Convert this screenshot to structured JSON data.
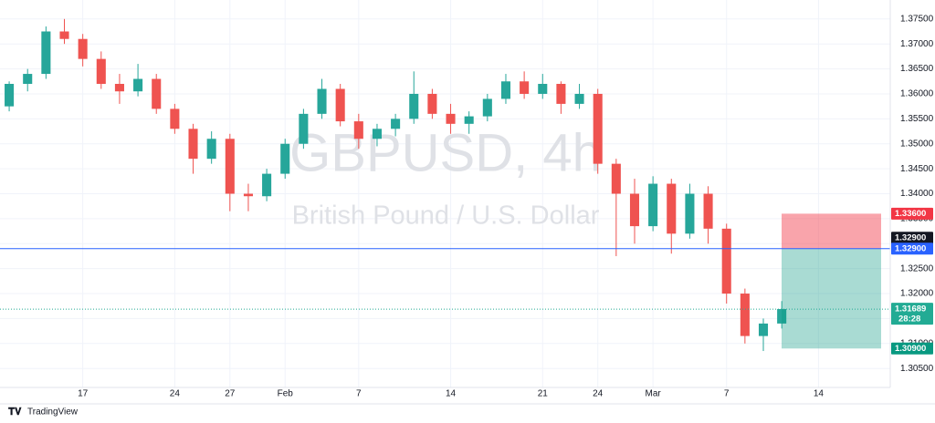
{
  "chart_data": {
    "type": "candlestick",
    "title": "GBPUSD, 4h",
    "subtitle": "British Pound / U.S. Dollar",
    "brand": "TradingView",
    "up_color": "#26a69a",
    "down_color": "#ef5350",
    "grid": true,
    "xlim": [
      -4.5,
      43.9
    ],
    "ylim": [
      1.3012,
      1.3788
    ],
    "xticks": [
      {
        "value": 0,
        "label": "17"
      },
      {
        "value": 5,
        "label": "24"
      },
      {
        "value": 8,
        "label": "27"
      },
      {
        "value": 11,
        "label": "Feb"
      },
      {
        "value": 15,
        "label": "7"
      },
      {
        "value": 20,
        "label": "14"
      },
      {
        "value": 25,
        "label": "21"
      },
      {
        "value": 28,
        "label": "24"
      },
      {
        "value": 31,
        "label": "Mar"
      },
      {
        "value": 35,
        "label": "7"
      },
      {
        "value": 40,
        "label": "14"
      }
    ],
    "yticks": [
      {
        "value": 1.305,
        "label": "1.30500"
      },
      {
        "value": 1.31,
        "label": "1.31000"
      },
      {
        "value": 1.315,
        "label": "1.31500"
      },
      {
        "value": 1.32,
        "label": "1.32000"
      },
      {
        "value": 1.325,
        "label": "1.32500"
      },
      {
        "value": 1.33,
        "label": "1.33000"
      },
      {
        "value": 1.335,
        "label": "1.33500"
      },
      {
        "value": 1.34,
        "label": "1.34000"
      },
      {
        "value": 1.345,
        "label": "1.34500"
      },
      {
        "value": 1.35,
        "label": "1.35000"
      },
      {
        "value": 1.355,
        "label": "1.35500"
      },
      {
        "value": 1.36,
        "label": "1.36000"
      },
      {
        "value": 1.365,
        "label": "1.36500"
      },
      {
        "value": 1.37,
        "label": "1.37000"
      },
      {
        "value": 1.375,
        "label": "1.37500"
      }
    ],
    "x": [
      -4,
      -3,
      -2,
      -1,
      0,
      1,
      2,
      3,
      4,
      5,
      6,
      7,
      8,
      9,
      10,
      11,
      12,
      13,
      14,
      15,
      16,
      17,
      18,
      19,
      20,
      21,
      22,
      23,
      24,
      25,
      26,
      27,
      28,
      29,
      30,
      31,
      32,
      33,
      34,
      35,
      36,
      37,
      38
    ],
    "open": [
      1.3575,
      1.362,
      1.364,
      1.3725,
      1.371,
      1.367,
      1.362,
      1.3605,
      1.363,
      1.357,
      1.353,
      1.347,
      1.351,
      1.34,
      1.3395,
      1.344,
      1.35,
      1.356,
      1.361,
      1.3545,
      1.351,
      1.353,
      1.355,
      1.36,
      1.356,
      1.354,
      1.3555,
      1.359,
      1.3625,
      1.36,
      1.362,
      1.358,
      1.36,
      1.346,
      1.34,
      1.3335,
      1.342,
      1.332,
      1.34,
      1.333,
      1.32,
      1.3115,
      1.314
    ],
    "high": [
      1.3625,
      1.365,
      1.3735,
      1.375,
      1.372,
      1.3685,
      1.364,
      1.366,
      1.364,
      1.358,
      1.354,
      1.3525,
      1.352,
      1.342,
      1.345,
      1.351,
      1.357,
      1.363,
      1.362,
      1.356,
      1.354,
      1.356,
      1.3645,
      1.361,
      1.358,
      1.3565,
      1.36,
      1.364,
      1.3645,
      1.364,
      1.3625,
      1.362,
      1.361,
      1.347,
      1.343,
      1.3435,
      1.343,
      1.342,
      1.3415,
      1.334,
      1.321,
      1.315,
      1.3185
    ],
    "low": [
      1.3565,
      1.3605,
      1.363,
      1.37,
      1.3655,
      1.361,
      1.358,
      1.3595,
      1.356,
      1.352,
      1.344,
      1.346,
      1.3365,
      1.3365,
      1.3385,
      1.343,
      1.349,
      1.355,
      1.3535,
      1.349,
      1.3495,
      1.3515,
      1.354,
      1.355,
      1.352,
      1.352,
      1.3545,
      1.358,
      1.359,
      1.359,
      1.356,
      1.357,
      1.344,
      1.3275,
      1.33,
      1.3325,
      1.328,
      1.331,
      1.33,
      1.318,
      1.31,
      1.3085,
      1.313
    ],
    "close": [
      1.362,
      1.364,
      1.3725,
      1.371,
      1.367,
      1.362,
      1.3605,
      1.363,
      1.357,
      1.353,
      1.347,
      1.351,
      1.34,
      1.3395,
      1.344,
      1.35,
      1.356,
      1.361,
      1.3545,
      1.351,
      1.353,
      1.355,
      1.36,
      1.356,
      1.354,
      1.3555,
      1.359,
      1.3625,
      1.36,
      1.362,
      1.358,
      1.36,
      1.346,
      1.34,
      1.3335,
      1.342,
      1.332,
      1.34,
      1.333,
      1.32,
      1.3115,
      1.314,
      1.3169
    ],
    "position": {
      "stop": {
        "value": 1.336,
        "label": "1.33600",
        "color": "#f23645"
      },
      "entry": {
        "value": 1.329,
        "label": "1.32900",
        "color": "#131722"
      },
      "target": {
        "value": 1.309,
        "label": "1.30900",
        "color": "#089981"
      }
    },
    "horizontal_line": {
      "value": 1.329,
      "label": "1.32900",
      "color": "#2962ff"
    },
    "last_price": {
      "value": 1.31689,
      "label": "1.31689",
      "countdown": "28:28",
      "color": "#22ab94"
    }
  }
}
